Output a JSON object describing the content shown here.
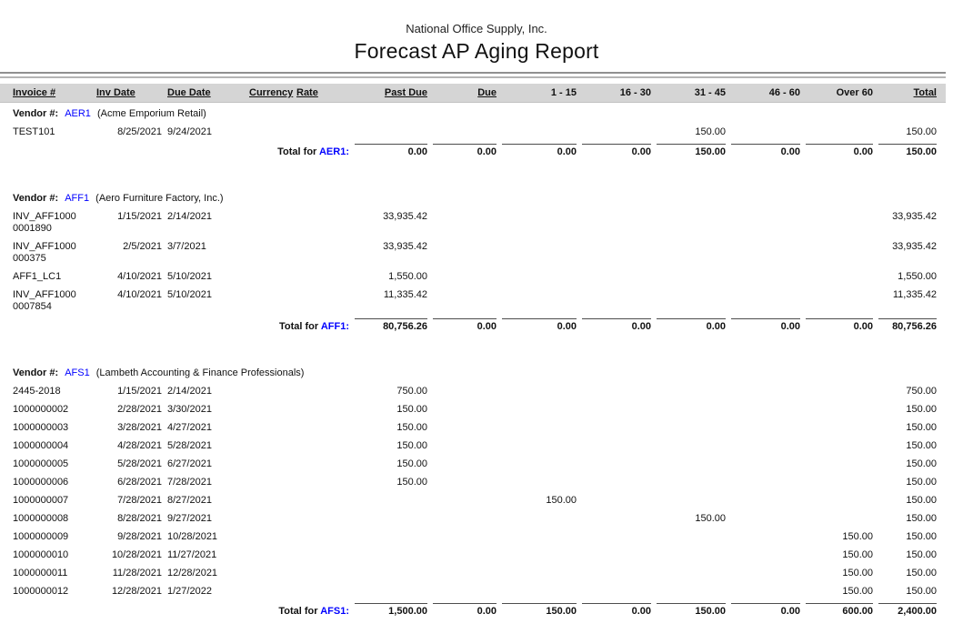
{
  "report": {
    "company": "National Office Supply, Inc.",
    "title": "Forecast AP Aging Report",
    "vendor_label": "Vendor #:",
    "total_label": "Total for",
    "colors": {
      "vendor_link_blue": "#0000ff",
      "header_band_gray": "#d5d5d5"
    },
    "columns": [
      {
        "label": "Invoice #",
        "underline": true
      },
      {
        "label": "Inv Date",
        "underline": true
      },
      {
        "label": "Due Date",
        "underline": true
      },
      {
        "label": "Currency",
        "underline": true
      },
      {
        "label": "Rate",
        "underline": true
      },
      {
        "label": "Past Due",
        "underline": true
      },
      {
        "label": "Due",
        "underline": true
      },
      {
        "label": "1 - 15",
        "underline": false
      },
      {
        "label": "16 - 30",
        "underline": false
      },
      {
        "label": "31 - 45",
        "underline": false
      },
      {
        "label": "46 - 60",
        "underline": false
      },
      {
        "label": "Over 60",
        "underline": false
      },
      {
        "label": "Total",
        "underline": true
      }
    ],
    "vendors": [
      {
        "code": "AER1",
        "name": "(Acme Emporium Retail)",
        "rows": [
          {
            "invoice": "TEST101",
            "inv_date": "8/25/2021",
            "due_date": "9/24/2021",
            "currency": "",
            "rate": "",
            "past_due": "",
            "due": "",
            "b1_15": "",
            "b16_30": "",
            "b31_45": "150.00",
            "b46_60": "",
            "over_60": "",
            "total": "150.00"
          }
        ],
        "totals": {
          "past_due": "0.00",
          "due": "0.00",
          "b1_15": "0.00",
          "b16_30": "0.00",
          "b31_45": "150.00",
          "b46_60": "0.00",
          "over_60": "0.00",
          "total": "150.00"
        }
      },
      {
        "code": "AFF1",
        "name": "(Aero Furniture Factory, Inc.)",
        "rows": [
          {
            "invoice": "INV_AFF1000\n0001890",
            "inv_date": "1/15/2021",
            "due_date": "2/14/2021",
            "currency": "",
            "rate": "",
            "past_due": "33,935.42",
            "due": "",
            "b1_15": "",
            "b16_30": "",
            "b31_45": "",
            "b46_60": "",
            "over_60": "",
            "total": "33,935.42"
          },
          {
            "invoice": "INV_AFF1000\n000375",
            "inv_date": "2/5/2021",
            "due_date": "3/7/2021",
            "currency": "",
            "rate": "",
            "past_due": "33,935.42",
            "due": "",
            "b1_15": "",
            "b16_30": "",
            "b31_45": "",
            "b46_60": "",
            "over_60": "",
            "total": "33,935.42"
          },
          {
            "invoice": "AFF1_LC1",
            "inv_date": "4/10/2021",
            "due_date": "5/10/2021",
            "currency": "",
            "rate": "",
            "past_due": "1,550.00",
            "due": "",
            "b1_15": "",
            "b16_30": "",
            "b31_45": "",
            "b46_60": "",
            "over_60": "",
            "total": "1,550.00"
          },
          {
            "invoice": "INV_AFF1000\n0007854",
            "inv_date": "4/10/2021",
            "due_date": "5/10/2021",
            "currency": "",
            "rate": "",
            "past_due": "11,335.42",
            "due": "",
            "b1_15": "",
            "b16_30": "",
            "b31_45": "",
            "b46_60": "",
            "over_60": "",
            "total": "11,335.42"
          }
        ],
        "totals": {
          "past_due": "80,756.26",
          "due": "0.00",
          "b1_15": "0.00",
          "b16_30": "0.00",
          "b31_45": "0.00",
          "b46_60": "0.00",
          "over_60": "0.00",
          "total": "80,756.26"
        }
      },
      {
        "code": "AFS1",
        "name": "(Lambeth Accounting & Finance Professionals)",
        "rows": [
          {
            "invoice": "2445-2018",
            "inv_date": "1/15/2021",
            "due_date": "2/14/2021",
            "currency": "",
            "rate": "",
            "past_due": "750.00",
            "due": "",
            "b1_15": "",
            "b16_30": "",
            "b31_45": "",
            "b46_60": "",
            "over_60": "",
            "total": "750.00"
          },
          {
            "invoice": "1000000002",
            "inv_date": "2/28/2021",
            "due_date": "3/30/2021",
            "currency": "",
            "rate": "",
            "past_due": "150.00",
            "due": "",
            "b1_15": "",
            "b16_30": "",
            "b31_45": "",
            "b46_60": "",
            "over_60": "",
            "total": "150.00"
          },
          {
            "invoice": "1000000003",
            "inv_date": "3/28/2021",
            "due_date": "4/27/2021",
            "currency": "",
            "rate": "",
            "past_due": "150.00",
            "due": "",
            "b1_15": "",
            "b16_30": "",
            "b31_45": "",
            "b46_60": "",
            "over_60": "",
            "total": "150.00"
          },
          {
            "invoice": "1000000004",
            "inv_date": "4/28/2021",
            "due_date": "5/28/2021",
            "currency": "",
            "rate": "",
            "past_due": "150.00",
            "due": "",
            "b1_15": "",
            "b16_30": "",
            "b31_45": "",
            "b46_60": "",
            "over_60": "",
            "total": "150.00"
          },
          {
            "invoice": "1000000005",
            "inv_date": "5/28/2021",
            "due_date": "6/27/2021",
            "currency": "",
            "rate": "",
            "past_due": "150.00",
            "due": "",
            "b1_15": "",
            "b16_30": "",
            "b31_45": "",
            "b46_60": "",
            "over_60": "",
            "total": "150.00"
          },
          {
            "invoice": "1000000006",
            "inv_date": "6/28/2021",
            "due_date": "7/28/2021",
            "currency": "",
            "rate": "",
            "past_due": "150.00",
            "due": "",
            "b1_15": "",
            "b16_30": "",
            "b31_45": "",
            "b46_60": "",
            "over_60": "",
            "total": "150.00"
          },
          {
            "invoice": "1000000007",
            "inv_date": "7/28/2021",
            "due_date": "8/27/2021",
            "currency": "",
            "rate": "",
            "past_due": "",
            "due": "",
            "b1_15": "150.00",
            "b16_30": "",
            "b31_45": "",
            "b46_60": "",
            "over_60": "",
            "total": "150.00"
          },
          {
            "invoice": "1000000008",
            "inv_date": "8/28/2021",
            "due_date": "9/27/2021",
            "currency": "",
            "rate": "",
            "past_due": "",
            "due": "",
            "b1_15": "",
            "b16_30": "",
            "b31_45": "150.00",
            "b46_60": "",
            "over_60": "",
            "total": "150.00"
          },
          {
            "invoice": "1000000009",
            "inv_date": "9/28/2021",
            "due_date": "10/28/2021",
            "currency": "",
            "rate": "",
            "past_due": "",
            "due": "",
            "b1_15": "",
            "b16_30": "",
            "b31_45": "",
            "b46_60": "",
            "over_60": "150.00",
            "total": "150.00"
          },
          {
            "invoice": "1000000010",
            "inv_date": "10/28/2021",
            "due_date": "11/27/2021",
            "currency": "",
            "rate": "",
            "past_due": "",
            "due": "",
            "b1_15": "",
            "b16_30": "",
            "b31_45": "",
            "b46_60": "",
            "over_60": "150.00",
            "total": "150.00"
          },
          {
            "invoice": "1000000011",
            "inv_date": "11/28/2021",
            "due_date": "12/28/2021",
            "currency": "",
            "rate": "",
            "past_due": "",
            "due": "",
            "b1_15": "",
            "b16_30": "",
            "b31_45": "",
            "b46_60": "",
            "over_60": "150.00",
            "total": "150.00"
          },
          {
            "invoice": "1000000012",
            "inv_date": "12/28/2021",
            "due_date": "1/27/2022",
            "currency": "",
            "rate": "",
            "past_due": "",
            "due": "",
            "b1_15": "",
            "b16_30": "",
            "b31_45": "",
            "b46_60": "",
            "over_60": "150.00",
            "total": "150.00"
          }
        ],
        "totals": {
          "past_due": "1,500.00",
          "due": "0.00",
          "b1_15": "150.00",
          "b16_30": "0.00",
          "b31_45": "150.00",
          "b46_60": "0.00",
          "over_60": "600.00",
          "total": "2,400.00"
        }
      }
    ]
  }
}
